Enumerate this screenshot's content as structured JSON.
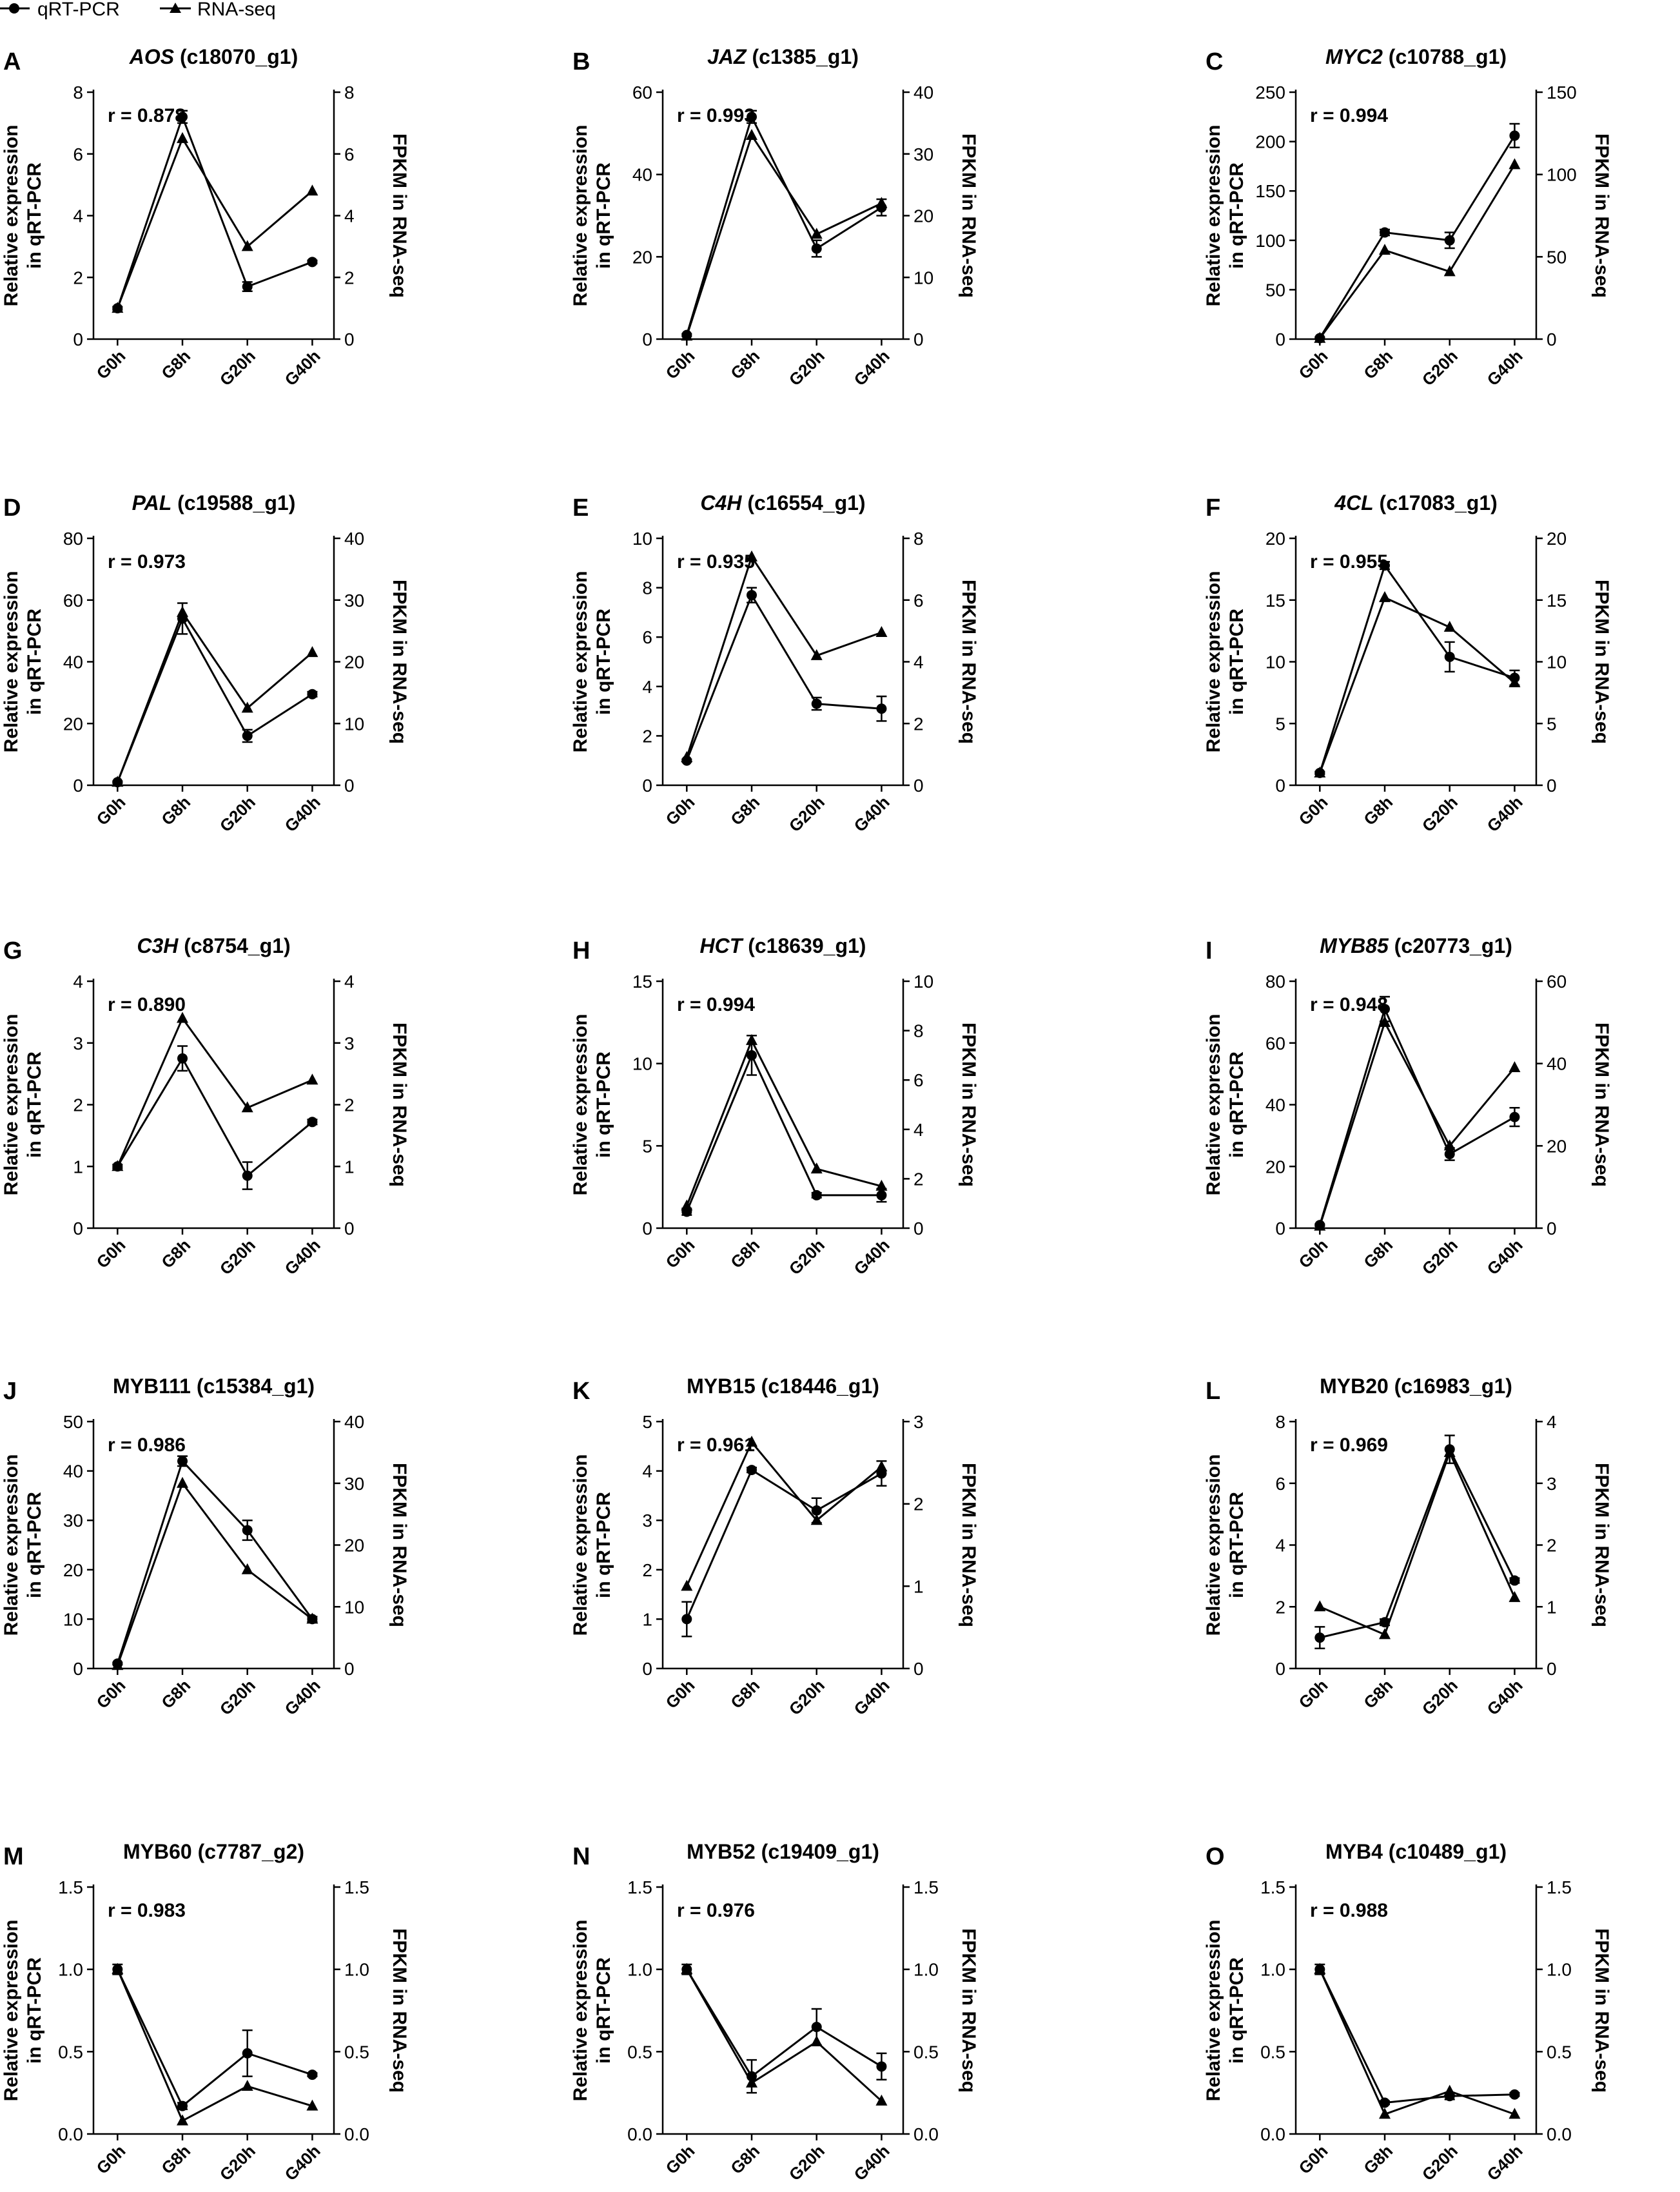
{
  "legend": {
    "series1": "qRT-PCR",
    "series2": "RNA-seq"
  },
  "chart_data": [
    {
      "letter": "A",
      "gene": "AOS",
      "gene_italic": true,
      "id": "(c18070_g1)",
      "r": "r = 0.878",
      "type": "line",
      "categories": [
        "G0h",
        "G8h",
        "G20h",
        "G40h"
      ],
      "ylabel": [
        "Relative expression",
        "in qRT-PCR"
      ],
      "y2label": "FPKM in RNA-seq",
      "ylim": [
        0,
        8
      ],
      "yticks": [
        0,
        2,
        4,
        6,
        8
      ],
      "y2lim": [
        0,
        8
      ],
      "y2ticks": [
        0,
        2,
        4,
        6,
        8
      ],
      "qpcr": [
        1.0,
        7.2,
        1.7,
        2.5
      ],
      "qpcr_err": [
        0.05,
        0.2,
        0.15,
        0.05
      ],
      "rnaseq": [
        1.0,
        6.5,
        3.0,
        4.8
      ]
    },
    {
      "letter": "B",
      "gene": "JAZ",
      "gene_italic": true,
      "id": "(c1385_g1)",
      "r": "r = 0.993",
      "type": "line",
      "categories": [
        "G0h",
        "G8h",
        "G20h",
        "G40h"
      ],
      "ylabel": [
        "Relative expression",
        "in qRT-PCR"
      ],
      "y2label": "FPKM in RNA-seq",
      "ylim": [
        0,
        60
      ],
      "yticks": [
        0,
        20,
        40,
        60
      ],
      "y2lim": [
        0,
        40
      ],
      "y2ticks": [
        0,
        10,
        20,
        30,
        40
      ],
      "qpcr": [
        1,
        54,
        22,
        32
      ],
      "qpcr_err": [
        0.3,
        1.5,
        2,
        2
      ],
      "rnaseq": [
        0.5,
        33,
        17,
        22
      ]
    },
    {
      "letter": "C",
      "gene": "MYC2",
      "gene_italic": true,
      "id": "(c10788_g1)",
      "r": "r = 0.994",
      "type": "line",
      "categories": [
        "G0h",
        "G8h",
        "G20h",
        "G40h"
      ],
      "ylabel": [
        "Relative expression",
        "in qRT-PCR"
      ],
      "y2label": "FPKM in RNA-seq",
      "ylim": [
        0,
        250
      ],
      "yticks": [
        0,
        50,
        100,
        150,
        200,
        250
      ],
      "y2lim": [
        0,
        150
      ],
      "y2ticks": [
        0,
        50,
        100,
        150
      ],
      "qpcr": [
        1,
        108,
        100,
        206
      ],
      "qpcr_err": [
        1,
        3,
        8,
        12
      ],
      "rnaseq": [
        0.5,
        54,
        41,
        106
      ]
    },
    {
      "letter": "D",
      "gene": "PAL",
      "gene_italic": true,
      "id": "(c19588_g1)",
      "r": "r = 0.973",
      "type": "line",
      "categories": [
        "G0h",
        "G8h",
        "G20h",
        "G40h"
      ],
      "ylabel": [
        "Relative expression",
        "in qRT-PCR"
      ],
      "y2label": "FPKM in RNA-seq",
      "ylim": [
        0,
        80
      ],
      "yticks": [
        0,
        20,
        40,
        60,
        80
      ],
      "y2lim": [
        0,
        40
      ],
      "y2ticks": [
        0,
        10,
        20,
        30,
        40
      ],
      "qpcr": [
        1,
        54,
        16,
        29.5
      ],
      "qpcr_err": [
        0.3,
        5,
        2,
        0.8
      ],
      "rnaseq": [
        0.5,
        28,
        12.5,
        21.5
      ]
    },
    {
      "letter": "E",
      "gene": "C4H",
      "gene_italic": true,
      "id": "(c16554_g1)",
      "r": "r = 0.935",
      "type": "line",
      "categories": [
        "G0h",
        "G8h",
        "G20h",
        "G40h"
      ],
      "ylabel": [
        "Relative expression",
        "in qRT-PCR"
      ],
      "y2label": "FPKM in RNA-seq",
      "ylim": [
        0,
        10
      ],
      "yticks": [
        0,
        2,
        4,
        6,
        8,
        10
      ],
      "y2lim": [
        0,
        8
      ],
      "y2ticks": [
        0,
        2,
        4,
        6,
        8
      ],
      "qpcr": [
        1.0,
        7.7,
        3.3,
        3.1
      ],
      "qpcr_err": [
        0.05,
        0.3,
        0.25,
        0.5
      ],
      "rnaseq": [
        0.9,
        7.4,
        4.2,
        4.95
      ]
    },
    {
      "letter": "F",
      "gene": "4CL",
      "gene_italic": true,
      "id": "(c17083_g1)",
      "r": "r = 0.955",
      "type": "line",
      "categories": [
        "G0h",
        "G8h",
        "G20h",
        "G40h"
      ],
      "ylabel": [
        "Relative expression",
        "in qRT-PCR"
      ],
      "y2label": "FPKM in RNA-seq",
      "ylim": [
        0,
        20
      ],
      "yticks": [
        0,
        5,
        10,
        15,
        20
      ],
      "y2lim": [
        0,
        20
      ],
      "y2ticks": [
        0,
        5,
        10,
        15,
        20
      ],
      "qpcr": [
        1,
        17.8,
        10.4,
        8.7
      ],
      "qpcr_err": [
        0.1,
        0.3,
        1.2,
        0.6
      ],
      "rnaseq": [
        1,
        15.2,
        12.8,
        8.3
      ]
    },
    {
      "letter": "G",
      "gene": "C3H",
      "gene_italic": true,
      "id": "(c8754_g1)",
      "r": "r = 0.890",
      "type": "line",
      "categories": [
        "G0h",
        "G8h",
        "G20h",
        "G40h"
      ],
      "ylabel": [
        "Relative expression",
        "in qRT-PCR"
      ],
      "y2label": "FPKM in RNA-seq",
      "ylim": [
        0,
        4
      ],
      "yticks": [
        0,
        1,
        2,
        3,
        4
      ],
      "y2lim": [
        0,
        4
      ],
      "y2ticks": [
        0,
        1,
        2,
        3,
        4
      ],
      "qpcr": [
        1.0,
        2.75,
        0.85,
        1.72
      ],
      "qpcr_err": [
        0.03,
        0.2,
        0.22,
        0.04
      ],
      "rnaseq": [
        1.0,
        3.4,
        1.95,
        2.4
      ]
    },
    {
      "letter": "H",
      "gene": "HCT",
      "gene_italic": true,
      "id": "(c18639_g1)",
      "r": "r = 0.994",
      "type": "line",
      "categories": [
        "G0h",
        "G8h",
        "G20h",
        "G40h"
      ],
      "ylabel": [
        "Relative expression",
        "in qRT-PCR"
      ],
      "y2label": "FPKM in RNA-seq",
      "ylim": [
        0,
        15
      ],
      "yticks": [
        0,
        5,
        10,
        15
      ],
      "y2lim": [
        0,
        10
      ],
      "y2ticks": [
        0,
        2,
        4,
        6,
        8,
        10
      ],
      "qpcr": [
        1.0,
        10.5,
        2.0,
        2.0
      ],
      "qpcr_err": [
        0.2,
        1.2,
        0.15,
        0.4
      ],
      "rnaseq": [
        0.9,
        7.6,
        2.4,
        1.7
      ]
    },
    {
      "letter": "I",
      "gene": "MYB85",
      "gene_italic": true,
      "id": "(c20773_g1)",
      "r": "r = 0.948",
      "type": "line",
      "categories": [
        "G0h",
        "G8h",
        "G20h",
        "G40h"
      ],
      "ylabel": [
        "Relative expression",
        "in qRT-PCR"
      ],
      "y2label": "FPKM in RNA-seq",
      "ylim": [
        0,
        80
      ],
      "yticks": [
        0,
        20,
        40,
        60,
        80
      ],
      "y2lim": [
        0,
        60
      ],
      "y2ticks": [
        0,
        20,
        40,
        60
      ],
      "qpcr": [
        1,
        71,
        24,
        36
      ],
      "qpcr_err": [
        0.3,
        4,
        2,
        3
      ],
      "rnaseq": [
        0.5,
        50,
        20,
        39
      ]
    },
    {
      "letter": "J",
      "gene": "MYB111",
      "gene_italic": false,
      "id": "(c15384_g1)",
      "r": "r = 0.986",
      "type": "line",
      "categories": [
        "G0h",
        "G8h",
        "G20h",
        "G40h"
      ],
      "ylabel": [
        "Relative expression",
        "in qRT-PCR"
      ],
      "y2label": "FPKM in RNA-seq",
      "ylim": [
        0,
        50
      ],
      "yticks": [
        0,
        10,
        20,
        30,
        40,
        50
      ],
      "y2lim": [
        0,
        40
      ],
      "y2ticks": [
        0,
        10,
        20,
        30,
        40
      ],
      "qpcr": [
        1,
        42,
        28,
        10
      ],
      "qpcr_err": [
        0.2,
        1,
        2,
        0.5
      ],
      "rnaseq": [
        0.5,
        30,
        16,
        8
      ]
    },
    {
      "letter": "K",
      "gene": "MYB15",
      "gene_italic": false,
      "id": "(c18446_g1)",
      "r": "r = 0.961",
      "type": "line",
      "categories": [
        "G0h",
        "G8h",
        "G20h",
        "G40h"
      ],
      "ylabel": [
        "Relative expression",
        "in qRT-PCR"
      ],
      "y2label": "FPKM in RNA-seq",
      "ylim": [
        0,
        5
      ],
      "yticks": [
        0,
        1,
        2,
        3,
        4,
        5
      ],
      "y2lim": [
        0,
        3
      ],
      "y2ticks": [
        0,
        1,
        2,
        3
      ],
      "qpcr": [
        1.0,
        4.02,
        3.2,
        3.95
      ],
      "qpcr_err": [
        0.35,
        0.05,
        0.25,
        0.25
      ],
      "rnaseq": [
        1.0,
        2.75,
        1.8,
        2.45
      ]
    },
    {
      "letter": "L",
      "gene": "MYB20",
      "gene_italic": false,
      "id": "(c16983_g1)",
      "r": "r = 0.969",
      "type": "line",
      "categories": [
        "G0h",
        "G8h",
        "G20h",
        "G40h"
      ],
      "ylabel": [
        "Relative expression",
        "in qRT-PCR"
      ],
      "y2label": "FPKM in RNA-seq",
      "ylim": [
        0,
        8
      ],
      "yticks": [
        0,
        2,
        4,
        6,
        8
      ],
      "y2lim": [
        0,
        4
      ],
      "y2ticks": [
        0,
        1,
        2,
        3,
        4
      ],
      "qpcr": [
        1.0,
        1.5,
        7.1,
        2.85
      ],
      "qpcr_err": [
        0.35,
        0.1,
        0.45,
        0.08
      ],
      "rnaseq": [
        1.0,
        0.55,
        3.5,
        1.15
      ]
    },
    {
      "letter": "M",
      "gene": "MYB60",
      "gene_italic": false,
      "id": "(c7787_g2)",
      "r": "r = 0.983",
      "type": "line",
      "categories": [
        "G0h",
        "G8h",
        "G20h",
        "G40h"
      ],
      "ylabel": [
        "Relative expression",
        "in qRT-PCR"
      ],
      "y2label": "FPKM in RNA-seq",
      "ylim": [
        0,
        1.5
      ],
      "yticks": [
        "0.0",
        "0.5",
        "1.0",
        "1.5"
      ],
      "y2lim": [
        0,
        1.5
      ],
      "y2ticks": [
        "0.0",
        "0.5",
        "1.0",
        "1.5"
      ],
      "qpcr": [
        1.0,
        0.17,
        0.49,
        0.36
      ],
      "qpcr_err": [
        0.03,
        0.02,
        0.14,
        0.01
      ],
      "rnaseq": [
        1.0,
        0.08,
        0.29,
        0.17
      ]
    },
    {
      "letter": "N",
      "gene": "MYB52",
      "gene_italic": false,
      "id": "(c19409_g1)",
      "r": "r = 0.976",
      "type": "line",
      "categories": [
        "G0h",
        "G8h",
        "G20h",
        "G40h"
      ],
      "ylabel": [
        "Relative expression",
        "in qRT-PCR"
      ],
      "y2label": "FPKM in RNA-seq",
      "ylim": [
        0,
        1.5
      ],
      "yticks": [
        "0.0",
        "0.5",
        "1.0",
        "1.5"
      ],
      "y2lim": [
        0,
        1.5
      ],
      "y2ticks": [
        "0.0",
        "0.5",
        "1.0",
        "1.5"
      ],
      "qpcr": [
        1.0,
        0.35,
        0.65,
        0.41
      ],
      "qpcr_err": [
        0.03,
        0.1,
        0.11,
        0.08
      ],
      "rnaseq": [
        1.0,
        0.31,
        0.56,
        0.2
      ]
    },
    {
      "letter": "O",
      "gene": "MYB4",
      "gene_italic": false,
      "id": "(c10489_g1)",
      "r": "r = 0.988",
      "type": "line",
      "categories": [
        "G0h",
        "G8h",
        "G20h",
        "G40h"
      ],
      "ylabel": [
        "Relative expression",
        "in qRT-PCR"
      ],
      "y2label": "FPKM in RNA-seq",
      "ylim": [
        0,
        1.5
      ],
      "yticks": [
        "0.0",
        "0.5",
        "1.0",
        "1.5"
      ],
      "y2lim": [
        0,
        1.5
      ],
      "y2ticks": [
        "0.0",
        "0.5",
        "1.0",
        "1.5"
      ],
      "qpcr": [
        1.0,
        0.19,
        0.23,
        0.24
      ],
      "qpcr_err": [
        0.03,
        0.01,
        0.02,
        0.01
      ],
      "rnaseq": [
        1.0,
        0.12,
        0.26,
        0.12
      ]
    }
  ]
}
